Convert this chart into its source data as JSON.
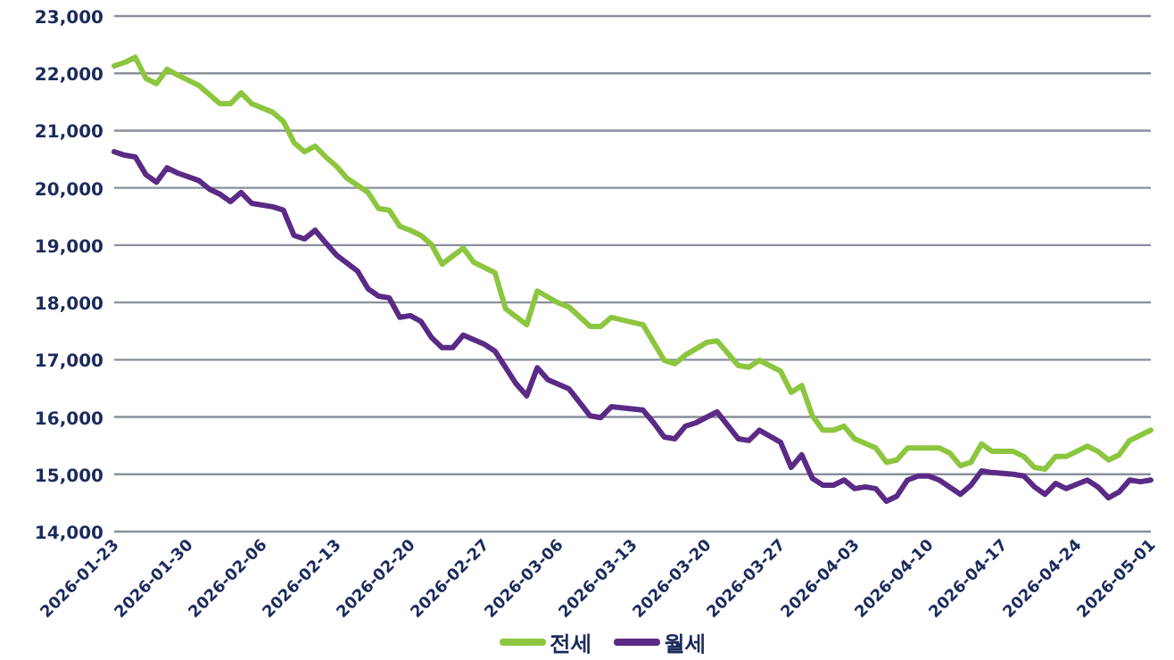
{
  "chart_data": {
    "type": "line",
    "xlim": [
      "2026-01-23",
      "2026-05-01"
    ],
    "xticks": [
      "2026-01-23",
      "2026-01-30",
      "2026-02-06",
      "2026-02-13",
      "2026-02-20",
      "2026-02-27",
      "2026-03-06",
      "2026-03-13",
      "2026-03-20",
      "2026-03-27",
      "2026-04-03",
      "2026-04-10",
      "2026-04-17",
      "2026-04-24",
      "2026-05-01"
    ],
    "ylim": [
      14000,
      23000
    ],
    "yticks": [
      {
        "value": 14000,
        "label": "14,000"
      },
      {
        "value": 15000,
        "label": "15,000"
      },
      {
        "value": 16000,
        "label": "16,000"
      },
      {
        "value": 17000,
        "label": "17,000"
      },
      {
        "value": 18000,
        "label": "18,000"
      },
      {
        "value": 19000,
        "label": "19,000"
      },
      {
        "value": 20000,
        "label": "20,000"
      },
      {
        "value": 21000,
        "label": "21,000"
      },
      {
        "value": 22000,
        "label": "22,000"
      },
      {
        "value": 23000,
        "label": "23,000"
      }
    ],
    "grid": "y",
    "legend": "bottom",
    "marker": "none",
    "line_style": "solid",
    "series": [
      {
        "name": "전세",
        "color": "#8cc63f",
        "x": [
          "2026-01-23",
          "2026-01-24",
          "2026-01-25",
          "2026-01-26",
          "2026-01-27",
          "2026-01-28",
          "2026-01-29",
          "2026-01-31",
          "2026-02-01",
          "2026-02-02",
          "2026-02-03",
          "2026-02-04",
          "2026-02-05",
          "2026-02-07",
          "2026-02-08",
          "2026-02-09",
          "2026-02-10",
          "2026-02-11",
          "2026-02-12",
          "2026-02-13",
          "2026-02-14",
          "2026-02-16",
          "2026-02-17",
          "2026-02-18",
          "2026-02-19",
          "2026-02-20",
          "2026-02-21",
          "2026-02-22",
          "2026-02-23",
          "2026-02-25",
          "2026-02-26",
          "2026-02-28",
          "2026-03-01",
          "2026-03-03",
          "2026-03-04",
          "2026-03-06",
          "2026-03-07",
          "2026-03-09",
          "2026-03-10",
          "2026-03-11",
          "2026-03-14",
          "2026-03-16",
          "2026-03-17",
          "2026-03-18",
          "2026-03-20",
          "2026-03-21",
          "2026-03-23",
          "2026-03-24",
          "2026-03-25",
          "2026-03-27",
          "2026-03-28",
          "2026-03-29",
          "2026-03-30",
          "2026-03-31",
          "2026-04-01",
          "2026-04-02",
          "2026-04-03",
          "2026-04-05",
          "2026-04-06",
          "2026-04-07",
          "2026-04-08",
          "2026-04-09",
          "2026-04-11",
          "2026-04-12",
          "2026-04-13",
          "2026-04-14",
          "2026-04-15",
          "2026-04-16",
          "2026-04-17",
          "2026-04-18",
          "2026-04-19",
          "2026-04-20",
          "2026-04-21",
          "2026-04-22",
          "2026-04-23",
          "2026-04-25",
          "2026-04-26",
          "2026-04-27",
          "2026-04-28",
          "2026-04-29",
          "2026-05-01"
        ],
        "values": [
          22130,
          22190,
          22280,
          21910,
          21820,
          22070,
          21970,
          21790,
          21630,
          21470,
          21470,
          21660,
          21470,
          21320,
          21160,
          20790,
          20630,
          20730,
          20540,
          20380,
          20170,
          19920,
          19640,
          19610,
          19330,
          19260,
          19170,
          19010,
          18670,
          18950,
          18700,
          18520,
          17890,
          17610,
          18200,
          17990,
          17920,
          17580,
          17580,
          17740,
          17610,
          16990,
          16930,
          17080,
          17300,
          17330,
          16900,
          16870,
          16990,
          16800,
          16430,
          16550,
          16020,
          15770,
          15770,
          15840,
          15620,
          15460,
          15210,
          15250,
          15460,
          15460,
          15460,
          15370,
          15150,
          15210,
          15530,
          15400,
          15400,
          15400,
          15310,
          15120,
          15090,
          15310,
          15310,
          15490,
          15400,
          15250,
          15340,
          15590,
          15770
        ]
      },
      {
        "name": "월세",
        "color": "#5b2a86",
        "x": [
          "2026-01-23",
          "2026-01-24",
          "2026-01-25",
          "2026-01-26",
          "2026-01-27",
          "2026-01-28",
          "2026-01-29",
          "2026-01-31",
          "2026-02-01",
          "2026-02-02",
          "2026-02-03",
          "2026-02-04",
          "2026-02-05",
          "2026-02-07",
          "2026-02-08",
          "2026-02-09",
          "2026-02-10",
          "2026-02-11",
          "2026-02-12",
          "2026-02-13",
          "2026-02-15",
          "2026-02-16",
          "2026-02-17",
          "2026-02-18",
          "2026-02-19",
          "2026-02-20",
          "2026-02-21",
          "2026-02-22",
          "2026-02-23",
          "2026-02-24",
          "2026-02-25",
          "2026-02-27",
          "2026-02-28",
          "2026-03-02",
          "2026-03-03",
          "2026-03-04",
          "2026-03-05",
          "2026-03-07",
          "2026-03-09",
          "2026-03-10",
          "2026-03-11",
          "2026-03-14",
          "2026-03-15",
          "2026-03-16",
          "2026-03-17",
          "2026-03-18",
          "2026-03-19",
          "2026-03-21",
          "2026-03-23",
          "2026-03-24",
          "2026-03-25",
          "2026-03-27",
          "2026-03-28",
          "2026-03-29",
          "2026-03-30",
          "2026-03-31",
          "2026-04-01",
          "2026-04-02",
          "2026-04-03",
          "2026-04-04",
          "2026-04-05",
          "2026-04-06",
          "2026-04-07",
          "2026-04-08",
          "2026-04-09",
          "2026-04-10",
          "2026-04-11",
          "2026-04-13",
          "2026-04-14",
          "2026-04-15",
          "2026-04-16",
          "2026-04-18",
          "2026-04-19",
          "2026-04-20",
          "2026-04-21",
          "2026-04-22",
          "2026-04-23",
          "2026-04-25",
          "2026-04-26",
          "2026-04-27",
          "2026-04-28",
          "2026-04-29",
          "2026-04-30",
          "2026-05-01"
        ],
        "values": [
          20630,
          20570,
          20540,
          20230,
          20100,
          20350,
          20260,
          20130,
          19980,
          19890,
          19760,
          19920,
          19730,
          19670,
          19610,
          19170,
          19110,
          19260,
          19040,
          18830,
          18550,
          18240,
          18110,
          18080,
          17740,
          17770,
          17670,
          17390,
          17210,
          17210,
          17430,
          17270,
          17150,
          16580,
          16370,
          16860,
          16650,
          16490,
          16020,
          15990,
          16180,
          16120,
          15900,
          15650,
          15620,
          15840,
          15900,
          16090,
          15620,
          15590,
          15770,
          15560,
          15120,
          15340,
          14930,
          14810,
          14810,
          14900,
          14750,
          14780,
          14750,
          14530,
          14620,
          14900,
          14970,
          14970,
          14900,
          14650,
          14810,
          15060,
          15030,
          15000,
          14970,
          14780,
          14650,
          14840,
          14750,
          14900,
          14780,
          14590,
          14690,
          14900,
          14870,
          14900
        ]
      }
    ]
  }
}
